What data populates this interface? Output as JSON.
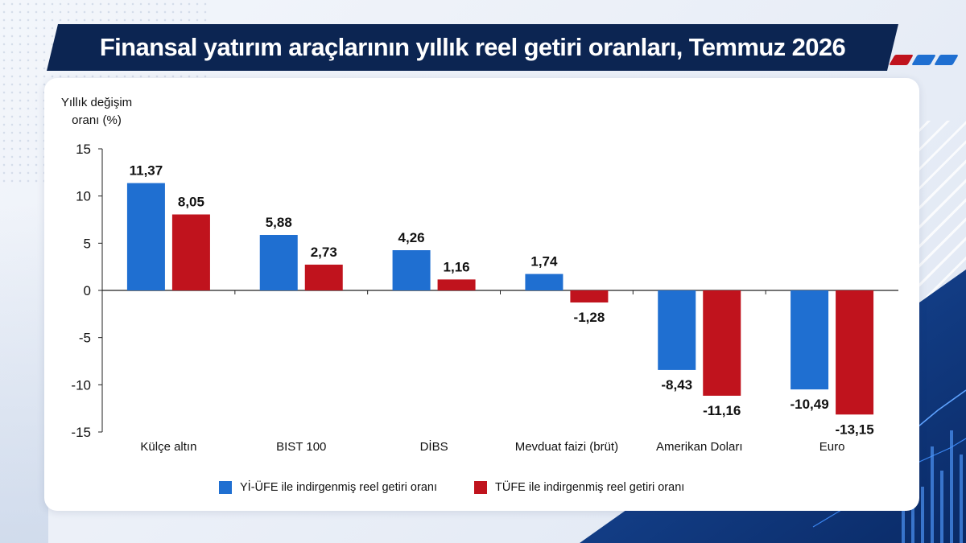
{
  "title": "Finansal yatırım araçlarının yıllık reel getiri oranları, Temmuz 2026",
  "colors": {
    "navy": "#0c2552",
    "series_blue": "#1f6fd1",
    "series_red": "#c0131d"
  },
  "chart_data": {
    "type": "bar",
    "ylabel_line1": "Yıllık değişim",
    "ylabel_line2": "oranı (%)",
    "xlabel": "",
    "ylim": [
      -15,
      15
    ],
    "yticks": [
      15,
      10,
      5,
      0,
      -5,
      -10,
      -15
    ],
    "grid": false,
    "legend_position": "bottom",
    "categories": [
      "Külçe altın",
      "BIST 100",
      "DİBS",
      "Mevduat faizi (brüt)",
      "Amerikan Doları",
      "Euro"
    ],
    "series": [
      {
        "name": "Yİ-ÜFE ile indirgenmiş reel getiri oranı",
        "color": "#1f6fd1",
        "values": [
          11.37,
          5.88,
          4.26,
          1.74,
          -8.43,
          -10.49
        ],
        "labels": [
          "11,37",
          "5,88",
          "4,26",
          "1,74",
          "-8,43",
          "-10,49"
        ]
      },
      {
        "name": "TÜFE ile indirgenmiş reel getiri oranı",
        "color": "#c0131d",
        "values": [
          8.05,
          2.73,
          1.16,
          -1.28,
          -11.16,
          -13.15
        ],
        "labels": [
          "8,05",
          "2,73",
          "1,16",
          "-1,28",
          "-11,16",
          "-13,15"
        ]
      }
    ]
  }
}
